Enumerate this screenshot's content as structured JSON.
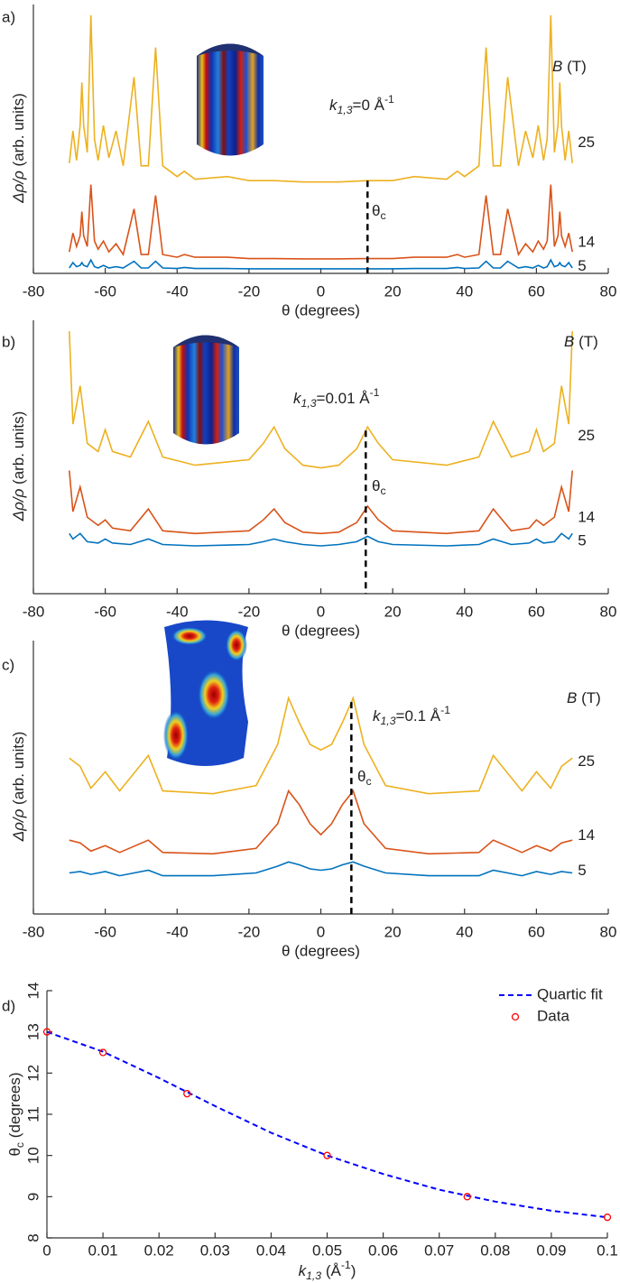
{
  "chart_data": [
    {
      "type": "line",
      "label": "a)",
      "xlabel": "θ (degrees)",
      "ylabel": {
        "symbol": "Δρ/ρ",
        "rest": " (arb. units)"
      },
      "annotation": {
        "symbol": "k",
        "subscript": "1,3",
        "rest": "=0 Å",
        "superscript": "-1"
      },
      "field_label": {
        "symbol": "B",
        "rest": " (T)"
      },
      "theta_c_label": {
        "symbol": "θ",
        "subscript": "c"
      },
      "theta_c": 13,
      "xlim": [
        -80,
        80
      ],
      "xticks": [
        -80,
        -60,
        -40,
        -20,
        0,
        20,
        40,
        60,
        80
      ],
      "ylim": [
        0,
        100
      ],
      "x": [
        -70,
        -69,
        -68,
        -67,
        -66.5,
        -66,
        -65,
        -64,
        -63,
        -62,
        -60.5,
        -59,
        -57,
        -55,
        -52,
        -50,
        -48,
        -46,
        -44,
        -40,
        -38,
        -35,
        -26,
        -20,
        -13,
        -5,
        0,
        5,
        13,
        20,
        26,
        35,
        38,
        40,
        44,
        46,
        48,
        50,
        52,
        55,
        57,
        59,
        60.5,
        62,
        63,
        64,
        65,
        66,
        66.5,
        67,
        68,
        69,
        70
      ],
      "series": [
        {
          "name": "25",
          "color": "#edb120",
          "values": [
            41,
            53,
            42,
            55,
            71,
            55,
            45,
            96,
            50,
            42,
            55,
            43,
            53,
            40,
            73,
            40,
            40,
            84,
            40,
            36,
            38,
            35,
            36,
            34.5,
            34.5,
            34,
            34,
            34,
            34.5,
            34.5,
            36,
            35,
            38,
            36,
            40,
            84,
            40,
            40,
            73,
            40,
            53,
            43,
            55,
            42,
            50,
            96,
            45,
            55,
            71,
            55,
            42,
            53,
            41
          ]
        },
        {
          "name": "14",
          "color": "#d95319",
          "values": [
            8,
            15,
            10,
            14,
            23,
            14,
            10,
            33,
            12,
            9,
            12,
            8,
            11,
            7,
            24,
            7,
            7,
            29,
            7,
            6,
            7,
            6,
            6,
            5.5,
            5.5,
            5.4,
            5.4,
            5.4,
            5.5,
            5.5,
            6,
            6,
            7,
            6,
            7,
            29,
            7,
            7,
            24,
            7,
            11,
            8,
            12,
            9,
            12,
            33,
            10,
            14,
            23,
            14,
            10,
            15,
            8
          ]
        },
        {
          "name": "5",
          "color": "#0072bd",
          "values": [
            2,
            4,
            2.5,
            3,
            4,
            3,
            2.5,
            5,
            2.5,
            2,
            3,
            2,
            2.5,
            2,
            4.5,
            2,
            2,
            4.5,
            2,
            1.8,
            2.2,
            1.8,
            1.8,
            1.7,
            1.7,
            1.7,
            1.7,
            1.7,
            1.7,
            1.7,
            1.8,
            1.8,
            2.2,
            1.8,
            2,
            4.5,
            2,
            2,
            4.5,
            2,
            2.5,
            2,
            3,
            2,
            2.5,
            5,
            2.5,
            3,
            4,
            3,
            2.5,
            4,
            2
          ]
        }
      ]
    },
    {
      "type": "line",
      "label": "b)",
      "xlabel": "θ (degrees)",
      "ylabel": {
        "symbol": "Δρ/ρ",
        "rest": " (arb. units)"
      },
      "annotation": {
        "symbol": "k",
        "subscript": "1,3",
        "rest": "=0.01 Å",
        "superscript": "-1"
      },
      "field_label": {
        "symbol": "B",
        "rest": " (T)"
      },
      "theta_c_label": {
        "symbol": "θ",
        "subscript": "c"
      },
      "theta_c": 12.5,
      "xlim": [
        -80,
        80
      ],
      "xticks": [
        -80,
        -60,
        -40,
        -20,
        0,
        20,
        40,
        60,
        80
      ],
      "ylim": [
        0,
        100
      ],
      "x": [
        -70,
        -69,
        -67,
        -65,
        -62,
        -60,
        -58,
        -53,
        -48,
        -44,
        -35,
        -20,
        -16,
        -13,
        -10,
        -5,
        0,
        5,
        10,
        13,
        16,
        20,
        35,
        44,
        48,
        53,
        58,
        60,
        62,
        65,
        67,
        69,
        70
      ],
      "series": [
        {
          "name": "25",
          "color": "#edb120",
          "values": [
            96,
            62,
            76,
            55,
            52,
            60,
            52,
            50,
            63,
            50,
            47,
            49,
            55,
            61,
            53,
            47,
            46,
            47,
            53,
            61,
            55,
            49,
            47,
            50,
            63,
            50,
            52,
            60,
            52,
            55,
            76,
            62,
            96
          ]
        },
        {
          "name": "14",
          "color": "#d95319",
          "values": [
            45,
            30,
            39,
            28,
            25,
            27,
            24,
            23,
            31,
            23,
            22,
            23,
            27,
            31,
            26,
            22.5,
            22,
            22.5,
            26,
            32,
            27,
            23,
            22,
            23,
            31,
            23,
            24,
            27,
            25,
            28,
            39,
            30,
            45
          ]
        },
        {
          "name": "5",
          "color": "#0072bd",
          "values": [
            22,
            20,
            22,
            19,
            18.5,
            20,
            18.5,
            18,
            20,
            18,
            17.5,
            18,
            19,
            20,
            19,
            18,
            17.5,
            18,
            19,
            21,
            19,
            18,
            17.5,
            18,
            20,
            18,
            18.5,
            20,
            18.5,
            19,
            22,
            20,
            22
          ]
        }
      ]
    },
    {
      "type": "line",
      "label": "c)",
      "xlabel": "θ (degrees)",
      "ylabel": {
        "symbol": "Δρ/ρ",
        "rest": " (arb. units)"
      },
      "annotation": {
        "symbol": "k",
        "subscript": "1,3",
        "rest": "=0.1 Å",
        "superscript": "-1"
      },
      "field_label": {
        "symbol": "B",
        "rest": " (T)"
      },
      "theta_c_label": {
        "symbol": "θ",
        "subscript": "c"
      },
      "theta_c": 8.5,
      "xlim": [
        -80,
        80
      ],
      "xticks": [
        -80,
        -60,
        -40,
        -20,
        0,
        20,
        40,
        60,
        80
      ],
      "ylim": [
        0,
        100
      ],
      "x": [
        -70,
        -67,
        -64,
        -60,
        -56,
        -48,
        -44,
        -30,
        -18,
        -12,
        -9,
        -6,
        -3,
        0,
        3,
        6,
        9,
        12,
        18,
        30,
        44,
        48,
        56,
        60,
        64,
        67,
        70
      ],
      "series": [
        {
          "name": "25",
          "color": "#edb120",
          "values": [
            57,
            54,
            46,
            52,
            45,
            58,
            45,
            44,
            47,
            62,
            79,
            70,
            62,
            60,
            62,
            70,
            79,
            62,
            47,
            44,
            45,
            58,
            45,
            52,
            46,
            54,
            57
          ]
        },
        {
          "name": "14",
          "color": "#d95319",
          "values": [
            27,
            26,
            23,
            25,
            22.5,
            27,
            22.5,
            22,
            24,
            33,
            45,
            40,
            33,
            29,
            33,
            40,
            45,
            33,
            24,
            22,
            22.5,
            27,
            22.5,
            25,
            23,
            26,
            27
          ]
        },
        {
          "name": "5",
          "color": "#0072bd",
          "values": [
            15,
            15.5,
            14.5,
            15.5,
            14,
            16,
            14,
            14,
            15,
            17.5,
            19,
            18,
            16.5,
            16,
            16.5,
            18,
            19,
            17.5,
            15,
            14,
            14,
            16,
            14,
            15.5,
            14.5,
            15.5,
            15
          ]
        }
      ]
    },
    {
      "type": "line",
      "label": "d)",
      "xlabel": {
        "symbol": "k",
        "subscript": "1,3",
        "rest": " (Å",
        "superscript": "-1",
        "close": ")"
      },
      "ylabel": {
        "symbol": "θ",
        "subscript": "c",
        "rest": " (degrees)"
      },
      "xlim": [
        0,
        0.1
      ],
      "xticks": [
        0,
        0.01,
        0.02,
        0.03,
        0.04,
        0.05,
        0.06,
        0.07,
        0.08,
        0.09,
        0.1
      ],
      "ylim": [
        8,
        14
      ],
      "yticks": [
        8,
        9,
        10,
        11,
        12,
        13,
        14
      ],
      "legend": "upper right",
      "series": [
        {
          "name": "Quartic fit",
          "color": "#0000ff",
          "line_style": "dashed",
          "x": [
            0,
            0.01,
            0.02,
            0.03,
            0.04,
            0.05,
            0.06,
            0.07,
            0.08,
            0.09,
            0.1
          ],
          "values": [
            13,
            12.52,
            11.88,
            11.2,
            10.55,
            10,
            9.55,
            9.17,
            8.88,
            8.66,
            8.5
          ]
        },
        {
          "name": "Data",
          "color": "#ff0000",
          "marker": "circle",
          "x": [
            0,
            0.01,
            0.025,
            0.05,
            0.075,
            0.1
          ],
          "values": [
            13,
            12.5,
            11.5,
            10,
            9,
            8.5
          ]
        }
      ]
    }
  ]
}
